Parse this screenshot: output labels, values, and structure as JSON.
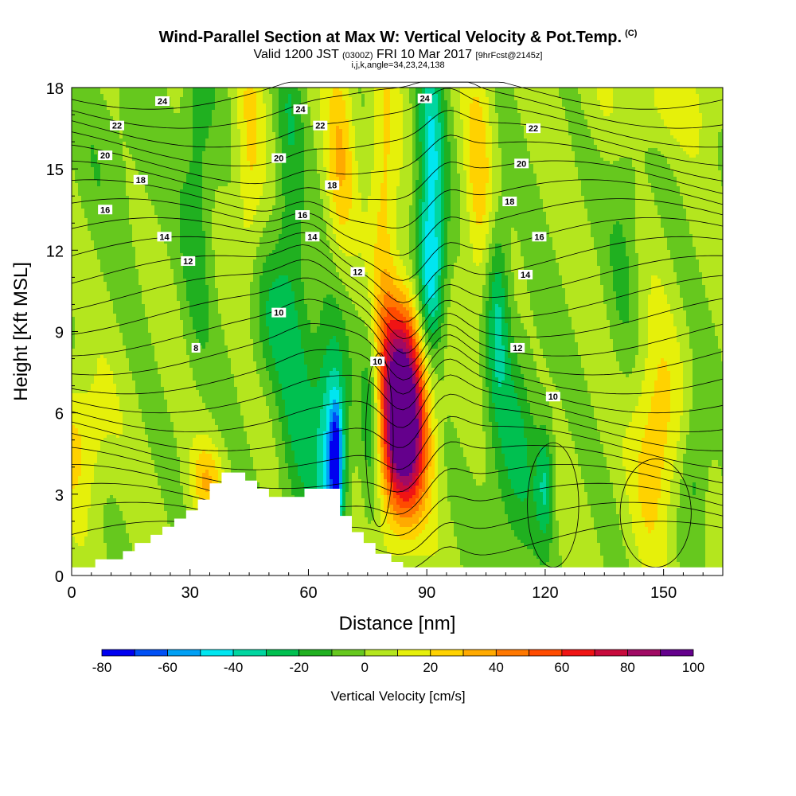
{
  "header": {
    "title": "Wind-Parallel Section at Max W: Vertical Velocity & Pot.Temp.",
    "copyright": "(C)",
    "valid_prefix": "Valid 1200 JST",
    "valid_utc": "(0300Z)",
    "valid_date": "FRI 10 Mar 2017",
    "forecast": "[9hrFcst@2145z]",
    "indices": "i,j,k,angle=34,23,24,138"
  },
  "chart_data": {
    "type": "heatmap",
    "xlabel": "Distance [nm]",
    "ylabel": "Height [Kft MSL]",
    "xlim": [
      0,
      165
    ],
    "ylim": [
      0,
      18
    ],
    "xticks": [
      0,
      30,
      60,
      90,
      120,
      150
    ],
    "yticks": [
      0,
      3,
      6,
      9,
      12,
      15,
      18
    ],
    "field": "Vertical Velocity",
    "colorbar": {
      "title": "Vertical Velocity [cm/s]",
      "labels": [
        "-80",
        "-60",
        "-40",
        "-20",
        "0",
        "20",
        "40",
        "60",
        "80",
        "100"
      ],
      "levels": [
        -80,
        -70,
        -60,
        -50,
        -40,
        -30,
        -20,
        -10,
        0,
        10,
        20,
        30,
        40,
        50,
        60,
        70,
        80,
        90,
        100
      ],
      "colors": [
        "#0000f0",
        "#0050f5",
        "#00a0f5",
        "#00e6f0",
        "#00d6a0",
        "#00c050",
        "#20b020",
        "#66c81e",
        "#b4e61e",
        "#e6f00a",
        "#ffd200",
        "#ffaa00",
        "#ff7800",
        "#ff4b00",
        "#f01414",
        "#c80a3c",
        "#a00a64",
        "#64008c"
      ]
    },
    "w_features": [
      {
        "x": 84,
        "y": 5.5,
        "sx": 4.2,
        "sy": 2.3,
        "value": 120
      },
      {
        "x": 84,
        "y": 8.8,
        "sx": 4.5,
        "sy": 1.6,
        "value": 30
      },
      {
        "x": 79,
        "y": 13.5,
        "sx": 2.6,
        "sy": 4.2,
        "value": 25
      },
      {
        "x": 68,
        "y": 15.5,
        "sx": 2.6,
        "sy": 3.0,
        "value": 25
      },
      {
        "x": 45,
        "y": 15.0,
        "sx": 2.5,
        "sy": 3.5,
        "value": 20
      },
      {
        "x": 103,
        "y": 14.5,
        "sx": 2.5,
        "sy": 3.5,
        "value": 22
      },
      {
        "x": 148,
        "y": 5.0,
        "sx": 4.0,
        "sy": 2.8,
        "value": 28
      },
      {
        "x": 2,
        "y": 5.0,
        "sx": 5.0,
        "sy": 1.8,
        "value": 22
      },
      {
        "x": 34,
        "y": 3.5,
        "sx": 3.0,
        "sy": 1.0,
        "value": 25
      },
      {
        "x": 150,
        "y": 17.5,
        "sx": 12.0,
        "sy": 1.2,
        "value": 12
      },
      {
        "x": 66,
        "y": 5.0,
        "sx": 2.8,
        "sy": 3.0,
        "value": -45
      },
      {
        "x": 67,
        "y": 4.2,
        "sx": 1.2,
        "sy": 1.5,
        "value": -55
      },
      {
        "x": 58,
        "y": 6.0,
        "sx": 4.0,
        "sy": 4.0,
        "value": -22
      },
      {
        "x": 76,
        "y": 6.0,
        "sx": 2.0,
        "sy": 3.0,
        "value": -28
      },
      {
        "x": 91,
        "y": 14.5,
        "sx": 2.5,
        "sy": 3.8,
        "value": -45
      },
      {
        "x": 91,
        "y": 10.5,
        "sx": 2.5,
        "sy": 1.8,
        "value": -30
      },
      {
        "x": 108,
        "y": 10.0,
        "sx": 2.0,
        "sy": 2.5,
        "value": -28
      },
      {
        "x": 112,
        "y": 4.5,
        "sx": 5.0,
        "sy": 3.5,
        "value": -22
      },
      {
        "x": 120,
        "y": 3.5,
        "sx": 1.5,
        "sy": 1.5,
        "value": -28
      },
      {
        "x": 158,
        "y": 4.0,
        "sx": 2.5,
        "sy": 2.0,
        "value": -18
      },
      {
        "x": 32,
        "y": 15.0,
        "sx": 3.0,
        "sy": 5.0,
        "value": -18
      },
      {
        "x": 55,
        "y": 15.5,
        "sx": 2.5,
        "sy": 4.5,
        "value": -18
      },
      {
        "x": 140,
        "y": 13.0,
        "sx": 3.0,
        "sy": 4.0,
        "value": -12
      },
      {
        "x": 12,
        "y": 16.0,
        "sx": 10.0,
        "sy": 3.0,
        "value": -8
      },
      {
        "x": 50,
        "y": 9.5,
        "sx": 5.0,
        "sy": 2.0,
        "value": -16
      }
    ],
    "terrain": [
      [
        0,
        0.3
      ],
      [
        6,
        0.3
      ],
      [
        6,
        0.6
      ],
      [
        13,
        0.6
      ],
      [
        13,
        0.9
      ],
      [
        16,
        0.9
      ],
      [
        16,
        1.2
      ],
      [
        20,
        1.2
      ],
      [
        20,
        1.5
      ],
      [
        23,
        1.5
      ],
      [
        23,
        1.8
      ],
      [
        26,
        1.8
      ],
      [
        26,
        2.1
      ],
      [
        29,
        2.1
      ],
      [
        29,
        2.4
      ],
      [
        32,
        2.4
      ],
      [
        32,
        2.8
      ],
      [
        35,
        2.8
      ],
      [
        35,
        3.4
      ],
      [
        38,
        3.4
      ],
      [
        38,
        3.8
      ],
      [
        44,
        3.8
      ],
      [
        44,
        3.5
      ],
      [
        47,
        3.5
      ],
      [
        47,
        3.2
      ],
      [
        50,
        3.2
      ],
      [
        50,
        2.9
      ],
      [
        59,
        2.9
      ],
      [
        59,
        3.2
      ],
      [
        68,
        3.2
      ],
      [
        68,
        2.2
      ],
      [
        71,
        2.2
      ],
      [
        71,
        1.6
      ],
      [
        74,
        1.6
      ],
      [
        74,
        1.2
      ],
      [
        77,
        1.2
      ],
      [
        77,
        0.8
      ],
      [
        81,
        0.8
      ],
      [
        81,
        0.5
      ],
      [
        84,
        0.5
      ],
      [
        84,
        0.3
      ],
      [
        165,
        0.3
      ]
    ],
    "isentropes": {
      "levels": [
        1,
        2,
        3,
        4,
        5,
        6,
        7,
        8,
        9,
        10,
        11,
        12,
        13,
        14,
        15,
        16,
        17,
        18,
        19,
        20,
        21,
        22,
        23,
        24,
        25
      ],
      "labels": [
        {
          "text": "24",
          "x": 23,
          "y": 17.5
        },
        {
          "text": "22",
          "x": 11.5,
          "y": 16.6
        },
        {
          "text": "20",
          "x": 8.5,
          "y": 15.5
        },
        {
          "text": "18",
          "x": 17.5,
          "y": 14.6
        },
        {
          "text": "16",
          "x": 8.5,
          "y": 13.5
        },
        {
          "text": "14",
          "x": 23.5,
          "y": 12.5
        },
        {
          "text": "12",
          "x": 29.5,
          "y": 11.6
        },
        {
          "text": "10",
          "x": 52.5,
          "y": 9.7
        },
        {
          "text": "8",
          "x": 31.5,
          "y": 8.4
        },
        {
          "text": "24",
          "x": 58,
          "y": 17.2
        },
        {
          "text": "22",
          "x": 63,
          "y": 16.6
        },
        {
          "text": "20",
          "x": 52.5,
          "y": 15.4
        },
        {
          "text": "18",
          "x": 66,
          "y": 14.4
        },
        {
          "text": "16",
          "x": 58.5,
          "y": 13.3
        },
        {
          "text": "14",
          "x": 61,
          "y": 12.5
        },
        {
          "text": "12",
          "x": 72.5,
          "y": 11.2
        },
        {
          "text": "10",
          "x": 77.5,
          "y": 7.9
        },
        {
          "text": "24",
          "x": 89.5,
          "y": 17.6
        },
        {
          "text": "22",
          "x": 117,
          "y": 16.5
        },
        {
          "text": "20",
          "x": 114,
          "y": 15.2
        },
        {
          "text": "18",
          "x": 111,
          "y": 13.8
        },
        {
          "text": "16",
          "x": 118.5,
          "y": 12.5
        },
        {
          "text": "14",
          "x": 115,
          "y": 11.1
        },
        {
          "text": "12",
          "x": 113,
          "y": 8.4
        },
        {
          "text": "10",
          "x": 122,
          "y": 6.6
        }
      ]
    },
    "w_zero_contours": [
      {
        "cx": 122,
        "cy": 2.6,
        "rx": 6.5,
        "ry": 2.3
      },
      {
        "cx": 148,
        "cy": 2.3,
        "rx": 9.0,
        "ry": 2.0
      },
      {
        "cx": 78,
        "cy": 5.0,
        "rx": 3.5,
        "ry": 3.2
      }
    ]
  }
}
